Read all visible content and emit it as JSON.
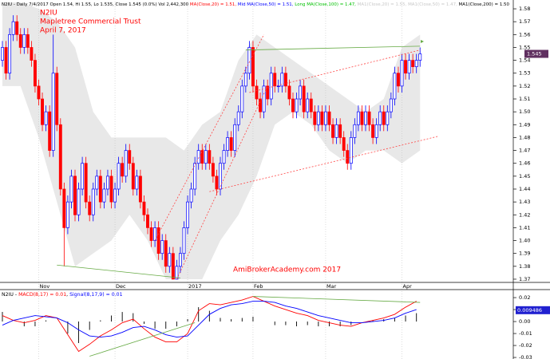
{
  "chart_data": {
    "type": "candlestick",
    "header": [
      {
        "text": "N2IU - Daily 7/4/2017 Open 1.54, Hi 1.55, Lo 1.535, Close 1.545 (0.0%) Vol 2,442,300 ",
        "color": "#000000"
      },
      {
        "text": "MA(Close,20) = 1.51, ",
        "color": "#ff0000"
      },
      {
        "text": "Mid MA(Close,50) = 1.51, ",
        "color": "#0000ff"
      },
      {
        "text": "Long MA(Close,100) = 1.47, ",
        "color": "#00c000"
      },
      {
        "text": "MA1(Close,20) = 1.55, ",
        "color": "#c8c8c8"
      },
      {
        "text": "MA1(Close,50) = 1.47, ",
        "color": "#c8c8c8"
      },
      {
        "text": "MA1(Close,200) = 1.50",
        "color": "#000000"
      }
    ],
    "title": [
      "N2IU",
      "Mapletree Commercial Trust",
      "April 7, 2017"
    ],
    "title_color": "#ff0000",
    "watermark": "AmiBrokerAcademy.com  2017",
    "up_color": "#0000ff",
    "down_color": "#ff0000",
    "categories": [
      null,
      null,
      null,
      null,
      null,
      null,
      null,
      null,
      null,
      null,
      "Nov",
      null,
      null,
      null,
      null,
      null,
      null,
      null,
      null,
      null,
      null,
      null,
      null,
      null,
      null,
      null,
      null,
      null,
      null,
      null,
      null,
      "Dec",
      null,
      null,
      null,
      null,
      null,
      null,
      null,
      null,
      null,
      null,
      null,
      null,
      null,
      null,
      null,
      null,
      null,
      null,
      null,
      "2017",
      null,
      null,
      null,
      null,
      null,
      null,
      null,
      null,
      null,
      null,
      null,
      null,
      null,
      null,
      null,
      null,
      null,
      "Feb",
      null,
      null,
      null,
      null,
      null,
      null,
      null,
      null,
      null,
      null,
      null,
      null,
      null,
      null,
      null,
      null,
      null,
      null,
      null,
      "Mar",
      null,
      null,
      null,
      null,
      null,
      null,
      null,
      null,
      null,
      null,
      null,
      null,
      null,
      null,
      null,
      null,
      null,
      null,
      null,
      null,
      "Apr",
      null,
      null,
      null,
      null,
      null
    ],
    "open": [
      1.54,
      1.55,
      1.53,
      1.56,
      1.57,
      1.56,
      1.55,
      1.56,
      1.55,
      1.54,
      1.52,
      1.51,
      1.49,
      1.5,
      1.47,
      1.53,
      1.49,
      1.44,
      1.41,
      1.43,
      1.45,
      1.42,
      1.44,
      1.46,
      1.43,
      1.42,
      1.44,
      1.45,
      1.43,
      1.44,
      1.45,
      1.43,
      1.44,
      1.46,
      1.45,
      1.47,
      1.46,
      1.44,
      1.45,
      1.43,
      1.42,
      1.41,
      1.4,
      1.41,
      1.39,
      1.4,
      1.38,
      1.39,
      1.37,
      1.38,
      1.39,
      1.41,
      1.43,
      1.44,
      1.46,
      1.47,
      1.46,
      1.47,
      1.46,
      1.45,
      1.44,
      1.46,
      1.47,
      1.48,
      1.47,
      1.49,
      1.5,
      1.52,
      1.53,
      1.55,
      1.52,
      1.51,
      1.5,
      1.52,
      1.51,
      1.53,
      1.52,
      1.52,
      1.53,
      1.52,
      1.51,
      1.5,
      1.51,
      1.52,
      1.5,
      1.51,
      1.5,
      1.49,
      1.5,
      1.49,
      1.5,
      1.49,
      1.48,
      1.49,
      1.48,
      1.47,
      1.46,
      1.48,
      1.49,
      1.5,
      1.49,
      1.5,
      1.49,
      1.48,
      1.49,
      1.5,
      1.49,
      1.5,
      1.51,
      1.53,
      1.52,
      1.54,
      1.53,
      1.54,
      1.535,
      1.54
    ],
    "high": [
      1.555,
      1.555,
      1.565,
      1.575,
      1.575,
      1.565,
      1.565,
      1.565,
      1.555,
      1.545,
      1.525,
      1.515,
      1.505,
      1.505,
      1.56,
      1.535,
      1.495,
      1.445,
      1.435,
      1.455,
      1.455,
      1.445,
      1.465,
      1.465,
      1.435,
      1.445,
      1.455,
      1.455,
      1.445,
      1.455,
      1.455,
      1.445,
      1.465,
      1.465,
      1.475,
      1.475,
      1.465,
      1.455,
      1.455,
      1.435,
      1.425,
      1.415,
      1.415,
      1.415,
      1.405,
      1.405,
      1.395,
      1.395,
      1.385,
      1.395,
      1.415,
      1.435,
      1.445,
      1.465,
      1.475,
      1.475,
      1.475,
      1.475,
      1.465,
      1.455,
      1.465,
      1.475,
      1.485,
      1.485,
      1.495,
      1.505,
      1.525,
      1.535,
      1.555,
      1.555,
      1.525,
      1.515,
      1.525,
      1.525,
      1.535,
      1.535,
      1.525,
      1.535,
      1.535,
      1.525,
      1.515,
      1.515,
      1.525,
      1.525,
      1.515,
      1.515,
      1.505,
      1.505,
      1.505,
      1.505,
      1.505,
      1.495,
      1.495,
      1.495,
      1.485,
      1.475,
      1.485,
      1.495,
      1.505,
      1.505,
      1.505,
      1.505,
      1.495,
      1.495,
      1.505,
      1.505,
      1.505,
      1.515,
      1.535,
      1.535,
      1.545,
      1.545,
      1.545,
      1.545,
      1.545,
      1.55
    ],
    "low": [
      1.535,
      1.525,
      1.525,
      1.555,
      1.555,
      1.545,
      1.545,
      1.545,
      1.535,
      1.515,
      1.505,
      1.485,
      1.485,
      1.465,
      1.465,
      1.485,
      1.435,
      1.38,
      1.405,
      1.425,
      1.415,
      1.415,
      1.435,
      1.425,
      1.415,
      1.415,
      1.435,
      1.425,
      1.425,
      1.435,
      1.425,
      1.425,
      1.435,
      1.445,
      1.445,
      1.455,
      1.435,
      1.435,
      1.425,
      1.415,
      1.405,
      1.395,
      1.395,
      1.385,
      1.385,
      1.375,
      1.375,
      1.37,
      1.37,
      1.375,
      1.385,
      1.405,
      1.425,
      1.435,
      1.455,
      1.455,
      1.455,
      1.455,
      1.445,
      1.435,
      1.435,
      1.455,
      1.465,
      1.465,
      1.465,
      1.485,
      1.495,
      1.515,
      1.525,
      1.515,
      1.505,
      1.495,
      1.495,
      1.505,
      1.505,
      1.515,
      1.515,
      1.515,
      1.515,
      1.505,
      1.495,
      1.495,
      1.505,
      1.495,
      1.495,
      1.495,
      1.485,
      1.485,
      1.485,
      1.485,
      1.485,
      1.475,
      1.475,
      1.475,
      1.465,
      1.455,
      1.455,
      1.475,
      1.485,
      1.485,
      1.485,
      1.485,
      1.475,
      1.475,
      1.485,
      1.485,
      1.485,
      1.495,
      1.505,
      1.515,
      1.515,
      1.525,
      1.525,
      1.53,
      1.53,
      1.535
    ],
    "close": [
      1.55,
      1.53,
      1.56,
      1.57,
      1.56,
      1.55,
      1.56,
      1.55,
      1.54,
      1.52,
      1.51,
      1.49,
      1.5,
      1.47,
      1.53,
      1.49,
      1.44,
      1.41,
      1.43,
      1.45,
      1.42,
      1.44,
      1.46,
      1.43,
      1.42,
      1.44,
      1.45,
      1.43,
      1.44,
      1.45,
      1.43,
      1.44,
      1.46,
      1.45,
      1.47,
      1.46,
      1.44,
      1.45,
      1.43,
      1.42,
      1.41,
      1.4,
      1.41,
      1.39,
      1.4,
      1.38,
      1.39,
      1.37,
      1.38,
      1.39,
      1.41,
      1.43,
      1.44,
      1.46,
      1.47,
      1.46,
      1.47,
      1.46,
      1.45,
      1.44,
      1.46,
      1.47,
      1.48,
      1.47,
      1.49,
      1.5,
      1.52,
      1.53,
      1.55,
      1.52,
      1.51,
      1.5,
      1.52,
      1.51,
      1.53,
      1.52,
      1.52,
      1.53,
      1.52,
      1.51,
      1.5,
      1.51,
      1.52,
      1.5,
      1.51,
      1.5,
      1.49,
      1.5,
      1.49,
      1.5,
      1.49,
      1.48,
      1.49,
      1.48,
      1.47,
      1.46,
      1.48,
      1.49,
      1.5,
      1.49,
      1.5,
      1.49,
      1.48,
      1.49,
      1.5,
      1.49,
      1.5,
      1.51,
      1.53,
      1.52,
      1.54,
      1.53,
      1.54,
      1.535,
      1.54,
      1.545
    ],
    "last_label_color": "#603060",
    "band": {
      "color": "#e8e8e8",
      "x": [
        0,
        5,
        10,
        15,
        20,
        25,
        30,
        35,
        40,
        45,
        50,
        55,
        60,
        65,
        70,
        75,
        80,
        85,
        90,
        95,
        100,
        105,
        110,
        115
      ],
      "upper": [
        1.585,
        1.585,
        1.58,
        1.57,
        1.55,
        1.5,
        1.48,
        1.48,
        1.48,
        1.48,
        1.47,
        1.49,
        1.5,
        1.54,
        1.56,
        1.55,
        1.54,
        1.53,
        1.52,
        1.51,
        1.5,
        1.51,
        1.55,
        1.56
      ],
      "lower": [
        1.52,
        1.52,
        1.48,
        1.43,
        1.38,
        1.39,
        1.4,
        1.42,
        1.4,
        1.37,
        1.37,
        1.37,
        1.4,
        1.42,
        1.45,
        1.49,
        1.5,
        1.49,
        1.47,
        1.46,
        1.47,
        1.47,
        1.46,
        1.47
      ]
    },
    "trendlines": [
      {
        "from": [
          15,
          1.381
        ],
        "to": [
          49,
          1.371
        ],
        "color": "#66aa44",
        "dotted": false
      },
      {
        "from": [
          67,
          1.548
        ],
        "to": [
          115,
          1.551
        ],
        "color": "#66aa44",
        "dotted": false
      },
      {
        "from": [
          42,
          1.4
        ],
        "to": [
          72,
          1.56
        ],
        "color": "#ff4444",
        "dotted": true
      },
      {
        "from": [
          48,
          1.37
        ],
        "to": [
          73,
          1.52
        ],
        "color": "#ff4444",
        "dotted": true
      },
      {
        "from": [
          68,
          1.515
        ],
        "to": [
          115,
          1.548
        ],
        "color": "#ff4444",
        "dotted": true
      },
      {
        "from": [
          57,
          1.438
        ],
        "to": [
          120,
          1.481
        ],
        "color": "#ff4444",
        "dotted": true
      }
    ],
    "ylim": [
      1.3675,
      1.5856
    ],
    "yticks": [
      1.37,
      1.38,
      1.39,
      {
        "value": 1.4,
        "label": "1.40"
      },
      1.41,
      1.42,
      1.43,
      1.44,
      1.45,
      1.46,
      1.47,
      1.48,
      1.49,
      {
        "value": 1.5,
        "label": "1.50"
      },
      1.51,
      1.52,
      1.53,
      1.54,
      1.55,
      1.56,
      1.57,
      1.58
    ],
    "macd": {
      "legend": [
        {
          "text": "N2IU - ",
          "color": "#000000"
        },
        {
          "text": "MACD(8,17) = 0.01",
          "color": "#ff0000"
        },
        {
          "text": ", ",
          "color": "#000000"
        },
        {
          "text": "Signal(8,17,9) = 0.01",
          "color": "#0000ff"
        }
      ],
      "x": [
        0,
        3,
        6,
        9,
        12,
        15,
        18,
        21,
        24,
        27,
        30,
        33,
        36,
        39,
        42,
        45,
        48,
        51,
        54,
        57,
        60,
        63,
        66,
        69,
        72,
        75,
        78,
        81,
        84,
        87,
        90,
        93,
        96,
        99,
        102,
        105,
        108,
        111,
        114
      ],
      "series": [
        {
          "color": "#ff0000",
          "values": [
            0.005,
            0.001,
            -0.001,
            0.001,
            0.005,
            0.003,
            -0.011,
            -0.025,
            -0.019,
            -0.012,
            -0.007,
            -0.001,
            0.002,
            -0.006,
            -0.013,
            -0.017,
            -0.017,
            -0.01,
            0.009,
            0.015,
            0.014,
            0.016,
            0.018,
            0.021,
            0.017,
            0.013,
            0.01,
            0.007,
            0.005,
            0.001,
            -0.001,
            -0.003,
            -0.004,
            -0.001,
            0.001,
            0.003,
            0.006,
            0.012,
            0.017
          ]
        },
        {
          "color": "#0000ff",
          "values": [
            -0.003,
            0.001,
            0.003,
            0.005,
            0.004,
            0.003,
            -0.001,
            -0.007,
            -0.012,
            -0.013,
            -0.012,
            -0.009,
            -0.005,
            -0.004,
            -0.007,
            -0.011,
            -0.013,
            -0.012,
            -0.003,
            0.006,
            0.011,
            0.014,
            0.015,
            0.017,
            0.017,
            0.016,
            0.013,
            0.011,
            0.008,
            0.005,
            0.003,
            0.001,
            -0.001,
            -0.001,
            0,
            0.001,
            0.003,
            0.007,
            0.01
          ]
        }
      ],
      "histogram": {
        "color": "#000000",
        "values": [
          0.008,
          0,
          -0.004,
          -0.004,
          0.001,
          0,
          -0.01,
          -0.018,
          -0.007,
          0.001,
          0.005,
          0.008,
          0.007,
          -0.002,
          -0.006,
          -0.006,
          -0.004,
          0.002,
          0.012,
          0.009,
          0.003,
          0.002,
          0.003,
          0.004,
          0,
          -0.003,
          -0.003,
          -0.004,
          -0.003,
          -0.004,
          -0.004,
          -0.004,
          -0.003,
          0,
          0.001,
          0.002,
          0.003,
          0.005,
          0.007
        ]
      },
      "last_value": 0.009486,
      "last_color": "#2020d0",
      "trendlines": [
        {
          "from": [
            24,
            -0.029
          ],
          "to": [
            53,
            -0.001
          ],
          "color": "#66aa44"
        },
        {
          "from": [
            69,
            0.021
          ],
          "to": [
            115,
            0.016
          ],
          "color": "#66aa44"
        }
      ],
      "ylim": [
        -0.0313,
        0.0267
      ],
      "yticks": [
        0.02,
        0.01,
        {
          "value": 0,
          "label": "0.00"
        },
        -0.01,
        -0.02,
        -0.03
      ]
    }
  }
}
